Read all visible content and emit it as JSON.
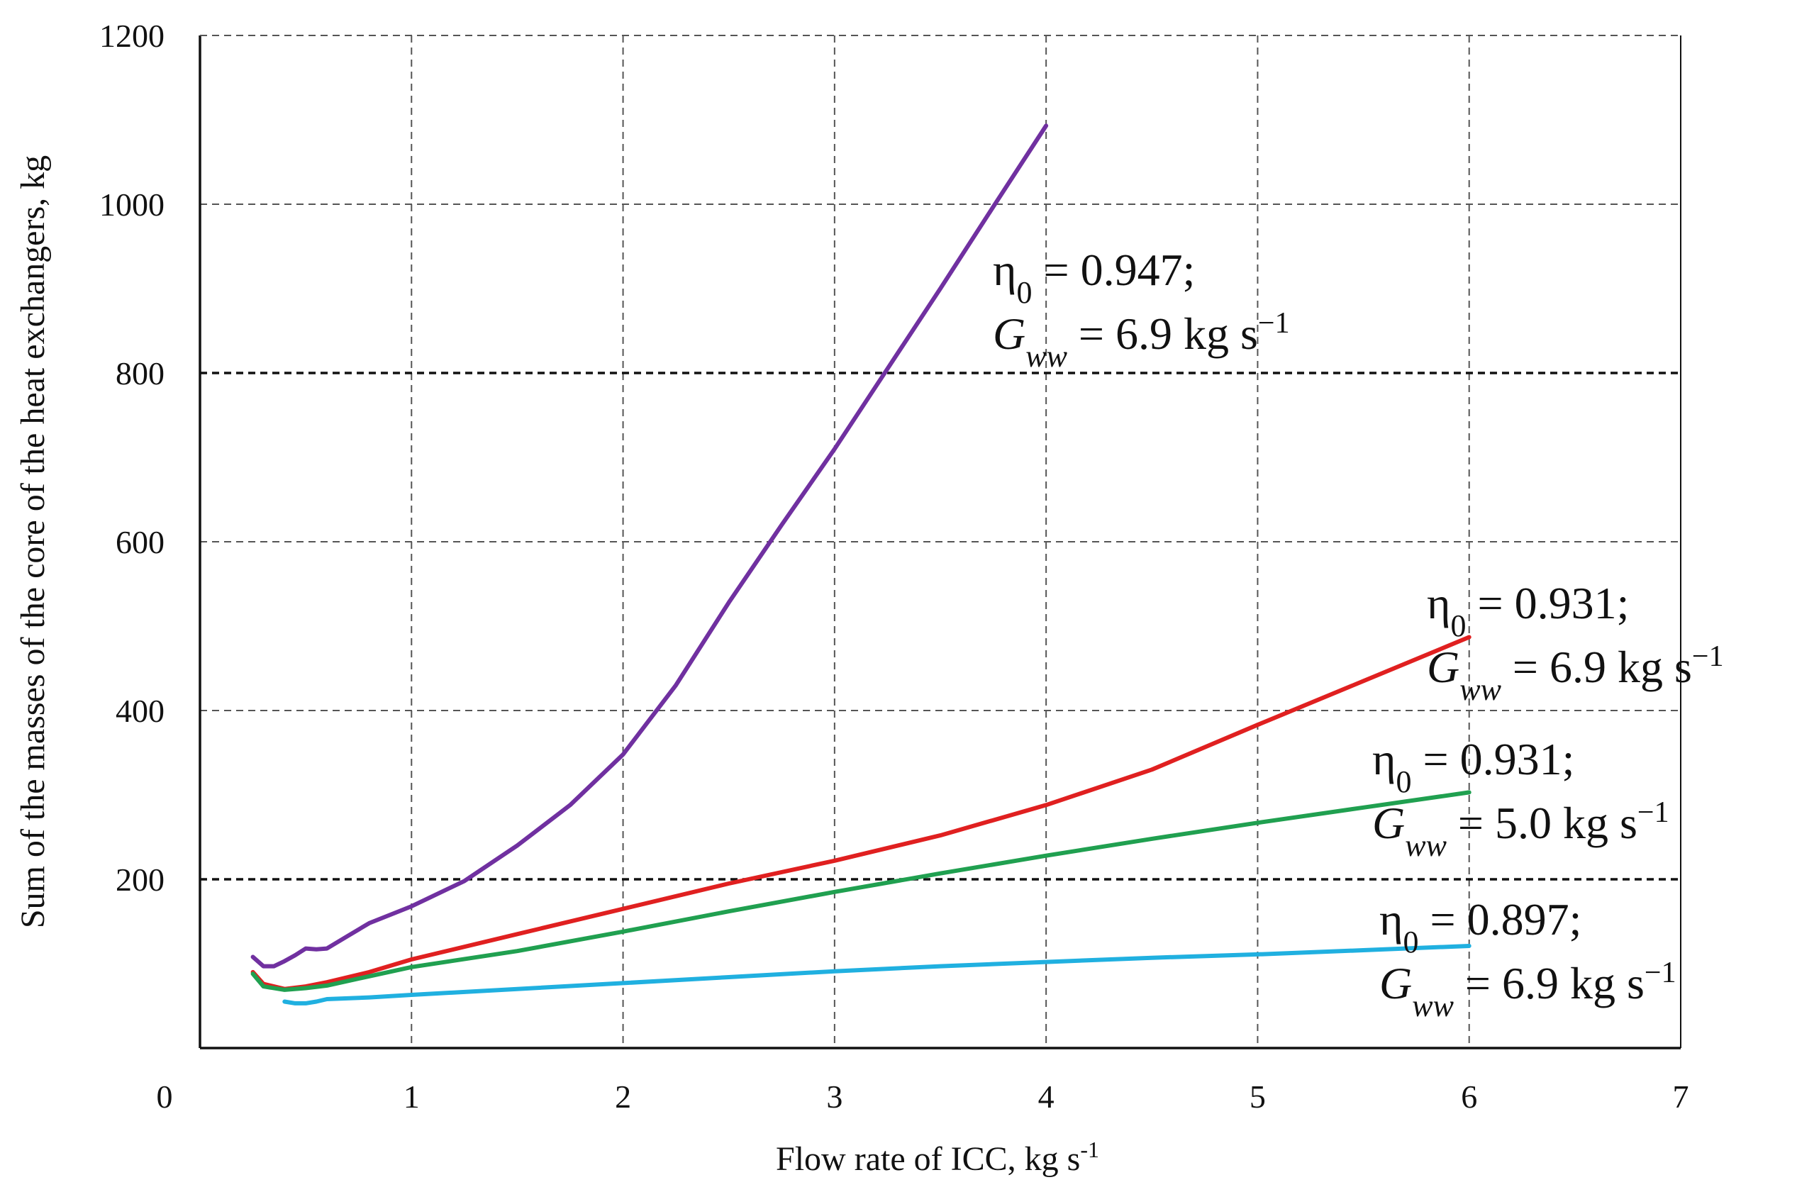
{
  "chart_data": {
    "type": "line",
    "title": "",
    "xlabel": "Flow rate of ICC, kg s",
    "xlabel_sup": "-1",
    "ylabel": "Sum of the masses of the core of the heat exchangers, kg",
    "xlim": [
      0,
      7
    ],
    "ylim": [
      0,
      1200
    ],
    "x_ticks": [
      "0",
      "1",
      "2",
      "3",
      "4",
      "5",
      "6",
      "7"
    ],
    "y_ticks": [
      "1200",
      "1000",
      "800",
      "600",
      "400",
      "200"
    ],
    "grid": true,
    "series": [
      {
        "name": "η0 = 0.947; Gww = 6.9 kg s−1",
        "color": "#7030a0",
        "x": [
          0.25,
          0.3,
          0.35,
          0.4,
          0.45,
          0.5,
          0.55,
          0.6,
          0.7,
          0.8,
          1.0,
          1.25,
          1.5,
          1.75,
          2.0,
          2.25,
          2.5,
          2.75,
          3.0,
          3.25,
          3.5,
          3.75,
          4.0
        ],
        "y": [
          108,
          97,
          97,
          103,
          110,
          118,
          117,
          118,
          133,
          148,
          168,
          198,
          240,
          288,
          348,
          430,
          528,
          620,
          710,
          805,
          900,
          997,
          1093
        ]
      },
      {
        "name": "η0 = 0.931; Gww = 6.9 kg s−1",
        "color": "#e02020",
        "x": [
          0.25,
          0.3,
          0.4,
          0.5,
          0.6,
          0.8,
          1.0,
          1.5,
          2.0,
          2.5,
          3.0,
          3.5,
          4.0,
          4.5,
          5.0,
          5.5,
          6.0
        ],
        "y": [
          90,
          76,
          70,
          73,
          78,
          90,
          105,
          135,
          165,
          195,
          222,
          252,
          288,
          330,
          383,
          435,
          487
        ]
      },
      {
        "name": "η0 = 0.931; Gww = 5.0 kg s−1",
        "color": "#20a050",
        "x": [
          0.25,
          0.3,
          0.4,
          0.5,
          0.6,
          0.8,
          1.0,
          1.5,
          2.0,
          2.5,
          3.0,
          3.5,
          4.0,
          4.5,
          5.0,
          5.5,
          6.0
        ],
        "y": [
          88,
          73,
          69,
          71,
          74,
          85,
          96,
          115,
          138,
          162,
          185,
          207,
          228,
          248,
          267,
          285,
          303
        ]
      },
      {
        "name": "η0 = 0.897; Gww = 6.9 kg s−1",
        "color": "#20b0e0",
        "x": [
          0.4,
          0.45,
          0.5,
          0.55,
          0.6,
          0.8,
          1.0,
          1.5,
          2.0,
          2.5,
          3.0,
          3.5,
          4.0,
          4.5,
          5.0,
          5.5,
          6.0
        ],
        "y": [
          55,
          53,
          53,
          55,
          58,
          60,
          63,
          70,
          77,
          84,
          91,
          97,
          102,
          107,
          111,
          116,
          121
        ]
      }
    ],
    "annotations": [
      {
        "eta": "η",
        "eta_sub": "0",
        "eta_value": " = 0.947;",
        "g": "G",
        "g_sub": "ww",
        "g_value": " = 6.9 kg s",
        "g_sup": "−1"
      },
      {
        "eta": "η",
        "eta_sub": "0",
        "eta_value": " = 0.931;",
        "g": "G",
        "g_sub": "ww",
        "g_value": " = 6.9 kg s",
        "g_sup": "−1"
      },
      {
        "eta": "η",
        "eta_sub": "0",
        "eta_value": " = 0.931;",
        "g": "G",
        "g_sub": "ww",
        "g_value": " = 5.0 kg s",
        "g_sup": "−1"
      },
      {
        "eta": "η",
        "eta_sub": "0",
        "eta_value": " = 0.897;",
        "g": "G",
        "g_sub": "ww",
        "g_value": " = 6.9 kg s",
        "g_sup": "−1"
      }
    ]
  }
}
